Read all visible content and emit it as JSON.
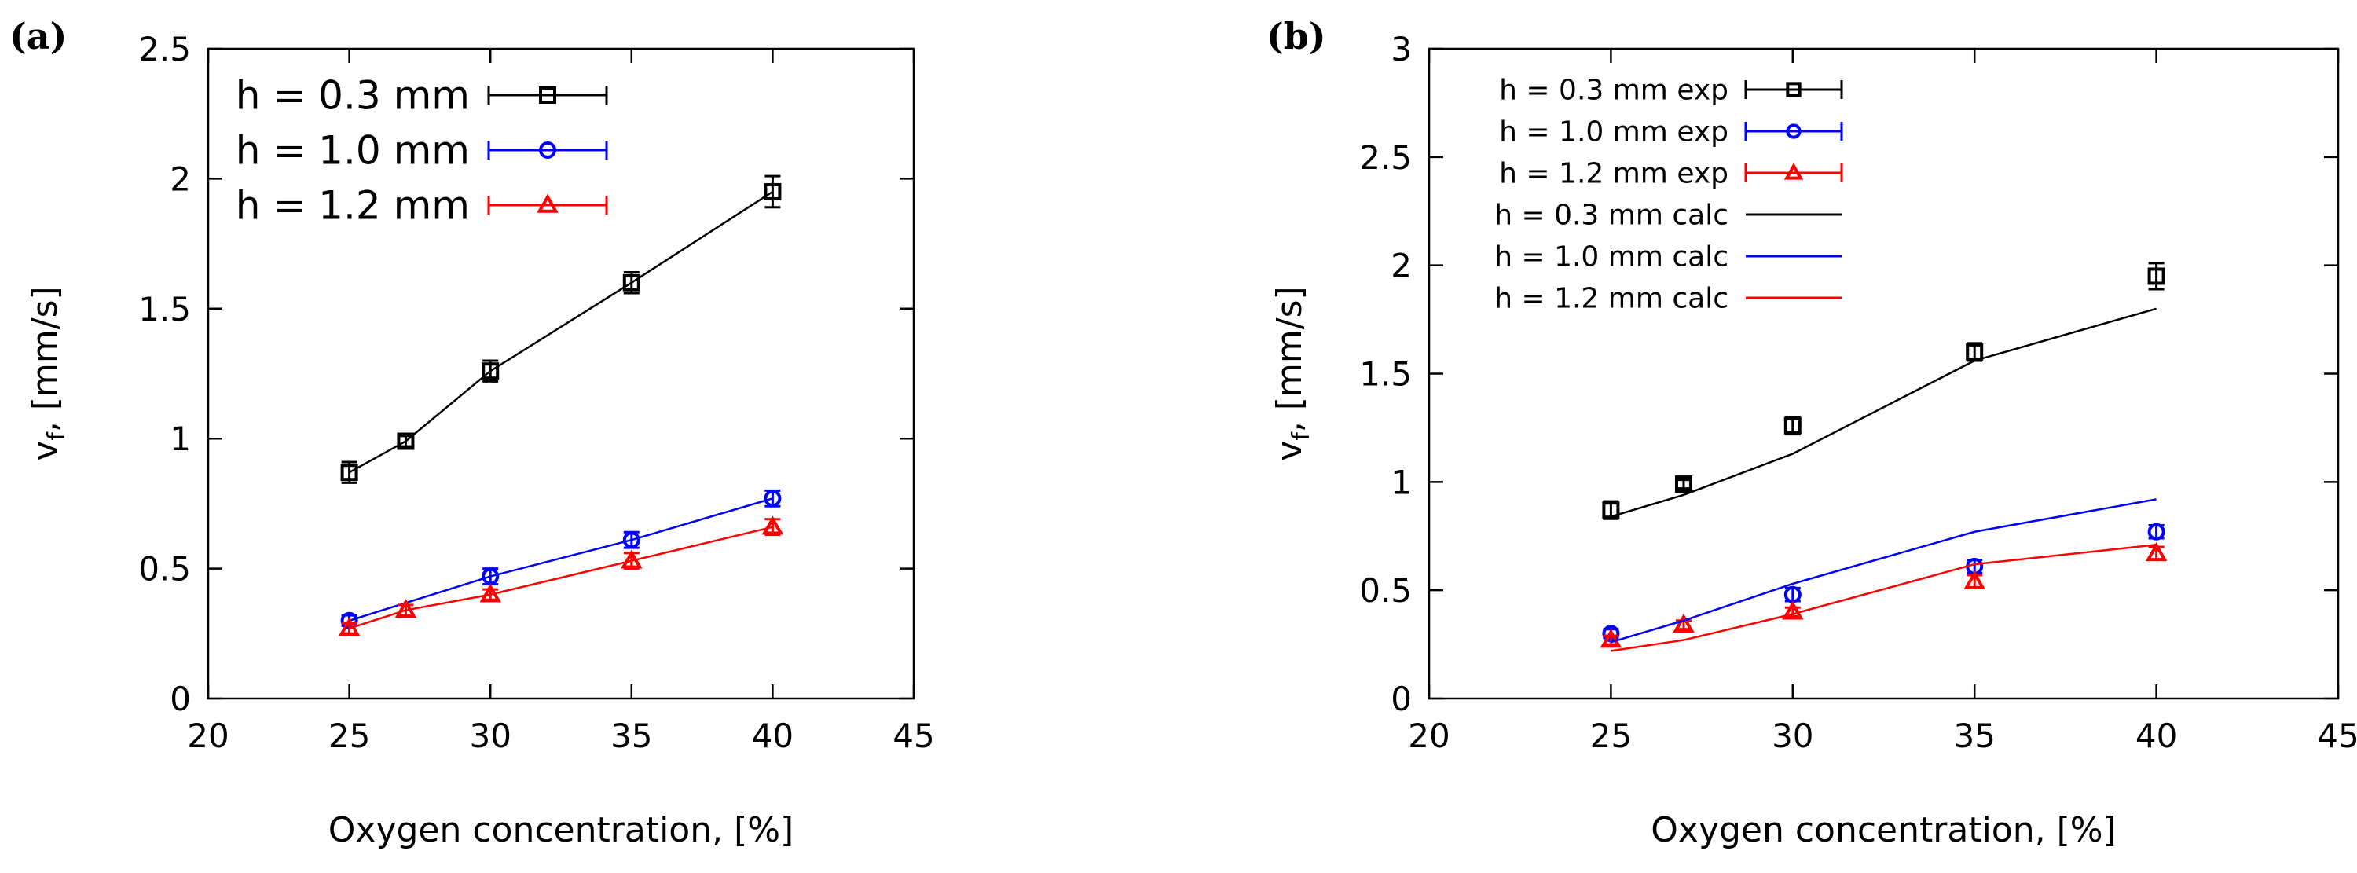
{
  "chart_data": [
    {
      "panel_label": "(a)",
      "type": "line",
      "xlabel": "Oxygen concentration, [%]",
      "ylabel": "v",
      "ylabel_sub": "f",
      "ylabel_tail": ", [mm/s]",
      "xlim": [
        20,
        45
      ],
      "ylim": [
        0,
        2.5
      ],
      "xticks": [
        20,
        25,
        30,
        35,
        40,
        45
      ],
      "yticks": [
        0,
        0.5,
        1,
        1.5,
        2,
        2.5
      ],
      "xtick_labels": [
        "20",
        "25",
        "30",
        "35",
        "40",
        "45"
      ],
      "ytick_labels": [
        "0",
        "0.5",
        "1",
        "1.5",
        "2",
        "2.5"
      ],
      "legend_position": "top-left",
      "series": [
        {
          "name": "h = 0.3 mm",
          "color": "#000000",
          "marker": "square",
          "kind": "exp",
          "x": [
            25,
            27,
            30,
            35,
            40
          ],
          "y": [
            0.87,
            0.99,
            1.26,
            1.6,
            1.95
          ],
          "err": [
            0.04,
            0.02,
            0.04,
            0.04,
            0.06
          ],
          "line": true
        },
        {
          "name": "h = 1.0 mm",
          "color": "#0000ff",
          "marker": "circle",
          "kind": "exp",
          "x": [
            25,
            30,
            35,
            40
          ],
          "y": [
            0.3,
            0.47,
            0.61,
            0.77
          ],
          "err": [
            0.02,
            0.03,
            0.03,
            0.03
          ],
          "line": true
        },
        {
          "name": "h = 1.2 mm",
          "color": "#ff0000",
          "marker": "triangle",
          "kind": "exp",
          "x": [
            25,
            27,
            30,
            35,
            40
          ],
          "y": [
            0.27,
            0.34,
            0.4,
            0.53,
            0.66
          ],
          "err": [
            0.02,
            0.02,
            0.02,
            0.03,
            0.03
          ],
          "line": true
        }
      ]
    },
    {
      "panel_label": "(b)",
      "type": "line",
      "xlabel": "Oxygen concentration, [%]",
      "ylabel": "v",
      "ylabel_sub": "f",
      "ylabel_tail": ", [mm/s]",
      "xlim": [
        20,
        45
      ],
      "ylim": [
        0,
        3
      ],
      "xticks": [
        20,
        25,
        30,
        35,
        40,
        45
      ],
      "yticks": [
        0,
        0.5,
        1,
        1.5,
        2,
        2.5,
        3
      ],
      "xtick_labels": [
        "20",
        "25",
        "30",
        "35",
        "40",
        "45"
      ],
      "ytick_labels": [
        "0",
        "0.5",
        "1",
        "1.5",
        "2",
        "2.5",
        "3"
      ],
      "legend_position": "top-left",
      "series": [
        {
          "name": "h = 0.3 mm exp",
          "color": "#000000",
          "marker": "square",
          "kind": "exp",
          "x": [
            25,
            27,
            30,
            35,
            40
          ],
          "y": [
            0.87,
            0.99,
            1.26,
            1.6,
            1.95
          ],
          "err": [
            0.04,
            0.02,
            0.04,
            0.04,
            0.06
          ],
          "line": false
        },
        {
          "name": "h = 1.0 mm exp",
          "color": "#0000ff",
          "marker": "circle",
          "kind": "exp",
          "x": [
            25,
            30,
            35,
            40
          ],
          "y": [
            0.3,
            0.48,
            0.61,
            0.77
          ],
          "err": [
            0.02,
            0.03,
            0.03,
            0.03
          ],
          "line": false
        },
        {
          "name": "h = 1.2 mm exp",
          "color": "#ff0000",
          "marker": "triangle",
          "kind": "exp",
          "x": [
            25,
            27,
            30,
            35,
            40
          ],
          "y": [
            0.27,
            0.34,
            0.4,
            0.54,
            0.67
          ],
          "err": [
            0.02,
            0.02,
            0.02,
            0.03,
            0.03
          ],
          "line": false
        },
        {
          "name": "h = 0.3 mm calc",
          "color": "#000000",
          "marker": "none",
          "kind": "calc",
          "x": [
            25,
            27,
            30,
            35,
            40
          ],
          "y": [
            0.84,
            0.94,
            1.13,
            1.56,
            1.8
          ],
          "line": true
        },
        {
          "name": "h = 1.0 mm calc",
          "color": "#0000ff",
          "marker": "none",
          "kind": "calc",
          "x": [
            25,
            27,
            30,
            35,
            40
          ],
          "y": [
            0.26,
            0.36,
            0.53,
            0.77,
            0.92
          ],
          "line": true
        },
        {
          "name": "h = 1.2 mm calc",
          "color": "#ff0000",
          "marker": "none",
          "kind": "calc",
          "x": [
            25,
            27,
            30,
            35,
            40
          ],
          "y": [
            0.22,
            0.27,
            0.39,
            0.62,
            0.71
          ],
          "line": true
        }
      ]
    }
  ]
}
